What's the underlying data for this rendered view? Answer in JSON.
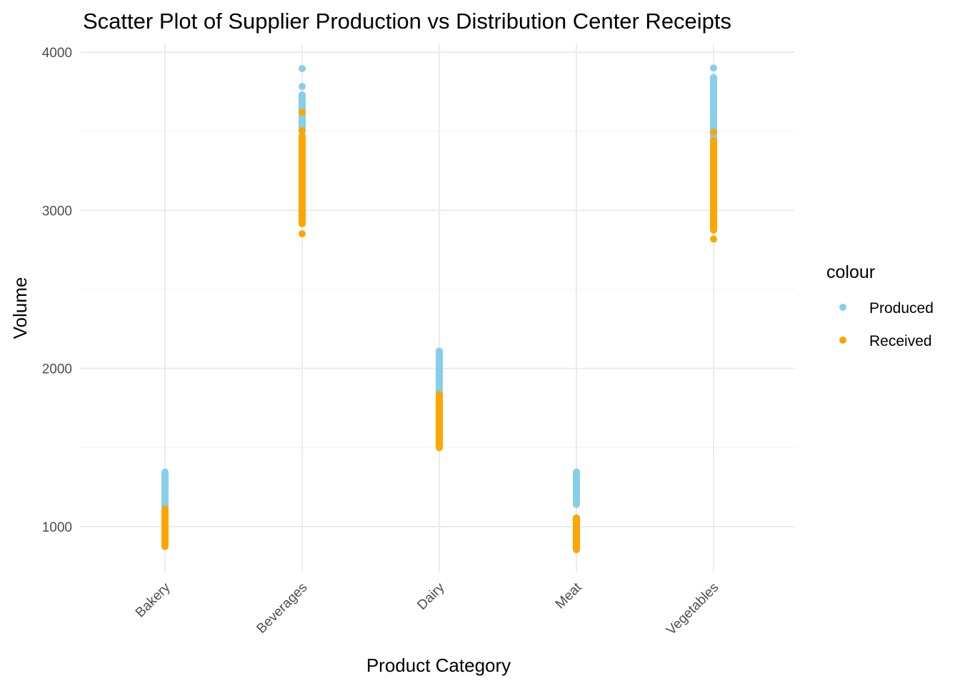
{
  "chart_data": {
    "type": "scatter",
    "title": "Scatter Plot of Supplier Production vs Distribution Center Receipts",
    "xlabel": "Product Category",
    "ylabel": "Volume",
    "categories": [
      "Bakery",
      "Beverages",
      "Dairy",
      "Meat",
      "Vegetables"
    ],
    "ylim": [
      700,
      4050
    ],
    "yticks": [
      1000,
      2000,
      3000,
      4000
    ],
    "y_minor": [
      1500,
      2500,
      3500
    ],
    "grid": true,
    "legend": {
      "title": "colour",
      "placement": "right"
    },
    "series": [
      {
        "name": "Produced",
        "color": "#87CEEB",
        "ranges": [
          {
            "category": "Bakery",
            "min": 1110,
            "max": 1345,
            "outliers": []
          },
          {
            "category": "Beverages",
            "min": 3500,
            "max": 3730,
            "outliers": [
              3783,
              3896
            ]
          },
          {
            "category": "Dairy",
            "min": 1820,
            "max": 2110,
            "outliers": []
          },
          {
            "category": "Meat",
            "min": 1140,
            "max": 1345,
            "outliers": []
          },
          {
            "category": "Vegetables",
            "min": 3450,
            "max": 3840,
            "outliers": [
              3900
            ]
          }
        ]
      },
      {
        "name": "Received",
        "color": "#FFA500",
        "ranges": [
          {
            "category": "Bakery",
            "min": 875,
            "max": 1110,
            "outliers": []
          },
          {
            "category": "Beverages",
            "min": 2915,
            "max": 3470,
            "outliers": [
              3503,
              3620,
              2852
            ]
          },
          {
            "category": "Dairy",
            "min": 1500,
            "max": 1835,
            "outliers": []
          },
          {
            "category": "Meat",
            "min": 855,
            "max": 1055,
            "outliers": []
          },
          {
            "category": "Vegetables",
            "min": 2875,
            "max": 3440,
            "outliers": [
              3494,
              2818
            ]
          }
        ]
      }
    ]
  }
}
